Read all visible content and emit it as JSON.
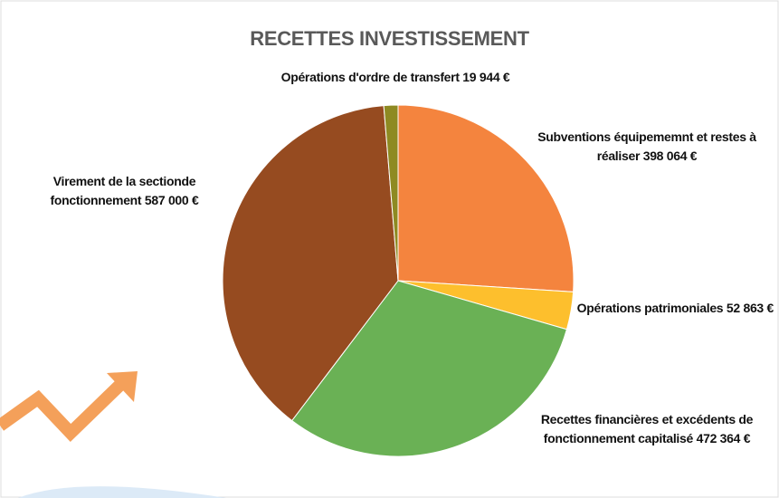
{
  "chart_data": {
    "type": "pie",
    "title": "RECETTES INVESTISSEMENT",
    "categories": [
      "Subventions équipememnt et restes à réaliser",
      "Opérations patrimoniales",
      "Recettes financières et excédents de fonctionnement capitalisé",
      "Virement de la sectionde fonctionnement",
      "Opérations d'ordre de transfert"
    ],
    "values": [
      398064,
      52863,
      472364,
      587000,
      19944
    ],
    "value_labels": [
      "398 064 €",
      "52 863 €",
      "472 364 €",
      "587 000 €",
      "19 944 €"
    ],
    "colors": [
      "#f4843e",
      "#fdbf2d",
      "#6ab155",
      "#964b20",
      "#8e8a22"
    ]
  }
}
